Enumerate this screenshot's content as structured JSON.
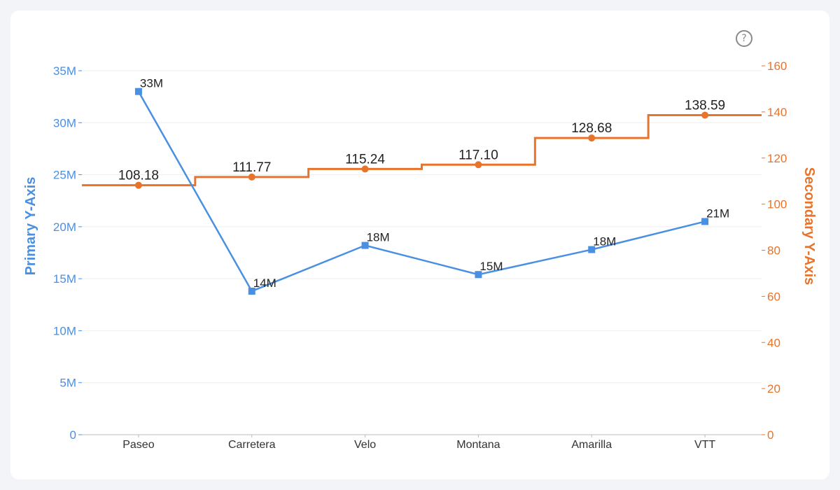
{
  "help_icon": {
    "glyph": "?"
  },
  "chart_data": {
    "type": "line",
    "categories": [
      "Paseo",
      "Carretera",
      "Velo",
      "Montana",
      "Amarilla",
      "VTT"
    ],
    "primary_axis": {
      "label": "Primary Y-Axis",
      "ylim": [
        0,
        35000000
      ],
      "ticks": [
        0,
        5000000,
        10000000,
        15000000,
        20000000,
        25000000,
        30000000,
        35000000
      ],
      "tick_labels": [
        "0",
        "5M",
        "10M",
        "15M",
        "20M",
        "25M",
        "30M",
        "35M"
      ],
      "color": "#4a90e2"
    },
    "secondary_axis": {
      "label": "Secondary Y-Axis",
      "ylim": [
        0,
        160
      ],
      "ticks": [
        0,
        20,
        40,
        60,
        80,
        100,
        120,
        140,
        160
      ],
      "tick_labels": [
        "0",
        "20",
        "40",
        "60",
        "80",
        "100",
        "120",
        "140",
        "160"
      ],
      "color": "#e8732a"
    },
    "series": [
      {
        "axis": "primary",
        "style": "line",
        "marker": "square",
        "color": "#4a90e2",
        "values": [
          33000000,
          13800000,
          18200000,
          15400000,
          17800000,
          20500000
        ],
        "labels": [
          "33M",
          "14M",
          "18M",
          "15M",
          "18M",
          "21M"
        ]
      },
      {
        "axis": "secondary",
        "style": "step",
        "marker": "circle",
        "color": "#e8732a",
        "values": [
          108.18,
          111.77,
          115.24,
          117.1,
          128.68,
          138.59
        ],
        "labels": [
          "108.18",
          "111.77",
          "115.24",
          "117.10",
          "128.68",
          "138.59"
        ]
      }
    ],
    "grid": true,
    "legend": "none"
  }
}
